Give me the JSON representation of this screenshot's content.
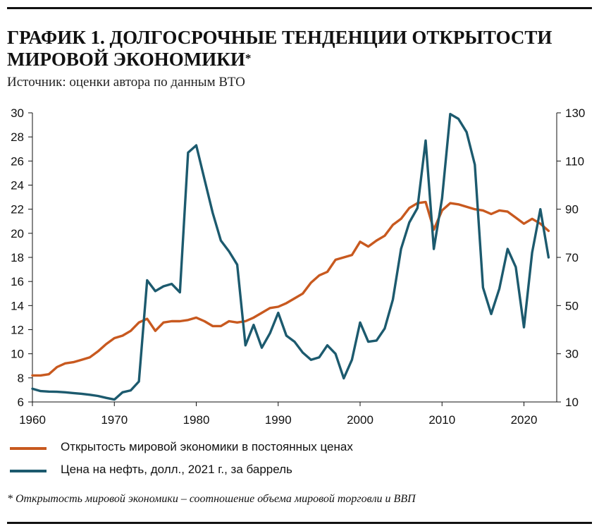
{
  "title": "ГРАФИК 1. ДОЛГОСРОЧНЫЕ ТЕНДЕНЦИИ ОТКРЫТОСТИ МИРОВОЙ ЭКОНОМИКИ",
  "title_mark": "*",
  "source": "Источник: оценки автора по данным ВТО",
  "footnote": "* Открытость мировой экономики – соотношение объема мировой торговли и ВВП",
  "colors": {
    "openness": "#c8591f",
    "oil": "#1c5a6e"
  },
  "chart_data": {
    "type": "line",
    "title": "",
    "xlabel": "",
    "ylabel": "",
    "xlim": [
      1960,
      2024
    ],
    "x_ticks": [
      1960,
      1970,
      1980,
      1990,
      2000,
      2010,
      2020
    ],
    "ylim_left": [
      6,
      30
    ],
    "y_left_ticks": [
      6,
      8,
      10,
      12,
      14,
      16,
      18,
      20,
      22,
      24,
      26,
      28,
      30
    ],
    "ylim_right": [
      10,
      130
    ],
    "y_right_ticks": [
      10,
      30,
      50,
      70,
      90,
      110,
      130
    ],
    "grid": false,
    "legend_position": "bottom",
    "series": [
      {
        "name": "Открытость мировой экономики в постоянных ценах",
        "axis": "left",
        "color": "#c8591f",
        "x": [
          1960,
          1961,
          1962,
          1963,
          1964,
          1965,
          1966,
          1967,
          1968,
          1969,
          1970,
          1971,
          1972,
          1973,
          1974,
          1975,
          1976,
          1977,
          1978,
          1979,
          1980,
          1981,
          1982,
          1983,
          1984,
          1985,
          1986,
          1987,
          1988,
          1989,
          1990,
          1991,
          1992,
          1993,
          1994,
          1995,
          1996,
          1997,
          1998,
          1999,
          2000,
          2001,
          2002,
          2003,
          2004,
          2005,
          2006,
          2007,
          2008,
          2009,
          2010,
          2011,
          2012,
          2013,
          2014,
          2015,
          2016,
          2017,
          2018,
          2019,
          2020,
          2021,
          2022,
          2023
        ],
        "y": [
          8.2,
          8.2,
          8.3,
          8.9,
          9.2,
          9.3,
          9.5,
          9.7,
          10.2,
          10.8,
          11.3,
          11.5,
          11.9,
          12.6,
          12.9,
          11.9,
          12.6,
          12.7,
          12.7,
          12.8,
          13.0,
          12.7,
          12.3,
          12.3,
          12.7,
          12.6,
          12.7,
          13.0,
          13.4,
          13.8,
          13.9,
          14.2,
          14.6,
          15.0,
          15.9,
          16.5,
          16.8,
          17.8,
          18.0,
          18.2,
          19.3,
          18.9,
          19.4,
          19.8,
          20.7,
          21.2,
          22.1,
          22.5,
          22.6,
          20.3,
          21.9,
          22.5,
          22.4,
          22.2,
          22.0,
          21.9,
          21.6,
          21.9,
          21.8,
          21.3,
          20.8,
          21.2,
          20.8,
          20.2
        ]
      },
      {
        "name": "Цена на нефть, долл., 2021 г., за баррель",
        "axis": "right",
        "color": "#1c5a6e",
        "x": [
          1960,
          1961,
          1962,
          1963,
          1964,
          1965,
          1966,
          1967,
          1968,
          1969,
          1970,
          1971,
          1972,
          1973,
          1974,
          1975,
          1976,
          1977,
          1978,
          1979,
          1980,
          1981,
          1982,
          1983,
          1984,
          1985,
          1986,
          1987,
          1988,
          1989,
          1990,
          1991,
          1992,
          1993,
          1994,
          1995,
          1996,
          1997,
          1998,
          1999,
          2000,
          2001,
          2002,
          2003,
          2004,
          2005,
          2006,
          2007,
          2008,
          2009,
          2010,
          2011,
          2012,
          2013,
          2014,
          2015,
          2016,
          2017,
          2018,
          2019,
          2020,
          2021,
          2022,
          2023
        ],
        "y": [
          15.5,
          14.5,
          14.3,
          14.2,
          14.0,
          13.7,
          13.4,
          13.0,
          12.5,
          11.7,
          11.0,
          14.0,
          14.8,
          18.5,
          60.5,
          56.0,
          58.0,
          59.0,
          55.5,
          113.5,
          116.5,
          102.5,
          88.5,
          77.0,
          72.5,
          67.0,
          33.5,
          42.0,
          32.5,
          38.5,
          47.0,
          37.5,
          35.0,
          30.5,
          27.5,
          28.5,
          33.5,
          30.0,
          19.8,
          27.5,
          43.0,
          35.0,
          35.5,
          40.5,
          52.5,
          73.5,
          84.5,
          90.5,
          118.5,
          73.5,
          94.5,
          129.5,
          127.5,
          122.0,
          108.5,
          57.5,
          46.5,
          57.0,
          73.5,
          66.0,
          41.0,
          72.0,
          90.0,
          70.0
        ]
      }
    ]
  }
}
